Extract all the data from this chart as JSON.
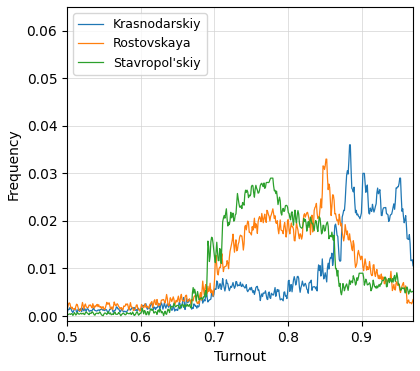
{
  "title": "",
  "xlabel": "Turnout",
  "ylabel": "Frequency",
  "xlim": [
    0.5,
    0.97
  ],
  "ylim": [
    -0.001,
    0.065
  ],
  "yticks": [
    0.0,
    0.01,
    0.02,
    0.03,
    0.04,
    0.05,
    0.06
  ],
  "xticks": [
    0.5,
    0.6,
    0.7,
    0.8,
    0.9
  ],
  "grid": true,
  "legend_loc": "upper left",
  "series": [
    {
      "label": "Krasnodarskiy",
      "color": "#1f77b4"
    },
    {
      "label": "Rostovskaya",
      "color": "#ff7f0e"
    },
    {
      "label": "Stavropol'skiy",
      "color": "#2ca02c"
    }
  ],
  "figsize": [
    4.2,
    3.71
  ],
  "dpi": 100
}
